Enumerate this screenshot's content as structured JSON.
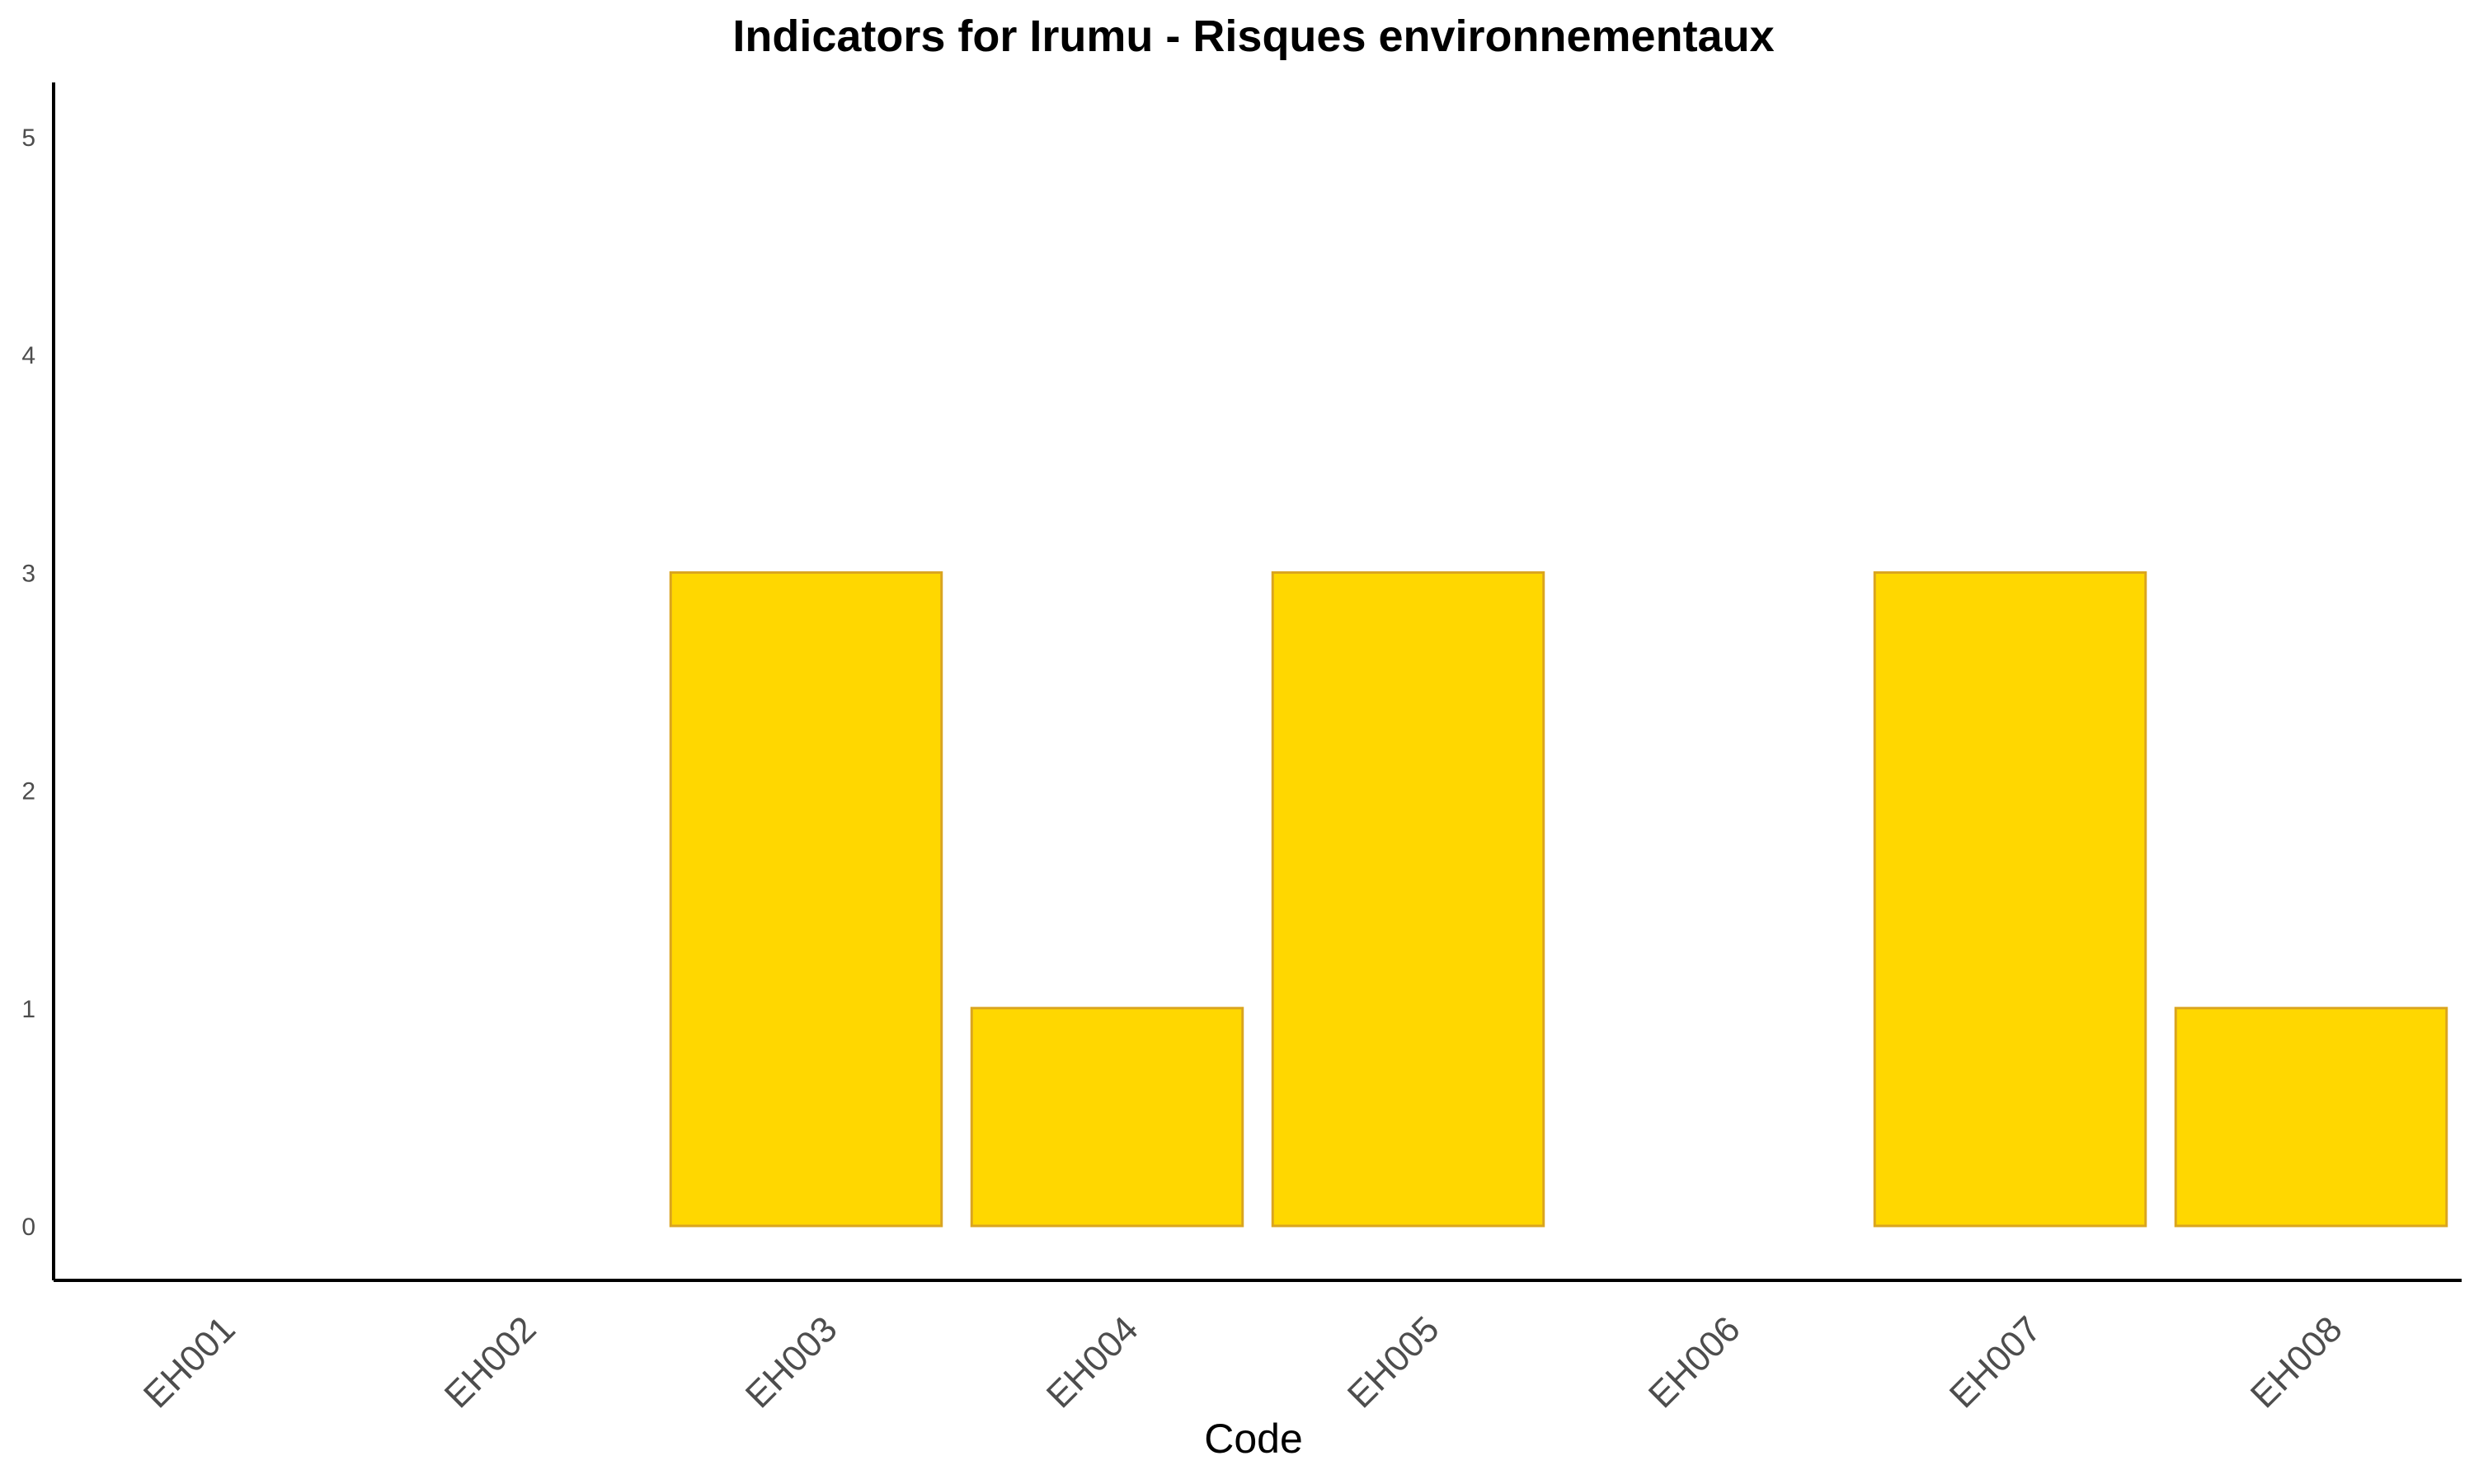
{
  "chart_data": {
    "type": "bar",
    "title": "Indicators for Irumu - Risques environnementaux",
    "xlabel": "Code",
    "ylabel": "",
    "categories": [
      "EH001",
      "EH002",
      "EH003",
      "EH004",
      "EH005",
      "EH006",
      "EH007",
      "EH008"
    ],
    "values": [
      0,
      0,
      3,
      1,
      3,
      0,
      3,
      1
    ],
    "ylim": [
      -0.25,
      5.25
    ],
    "yticks": [
      "0",
      "1",
      "2",
      "3",
      "4",
      "5"
    ],
    "grid": false,
    "legend": "none",
    "colors": {
      "bar_fill": "#FFD700",
      "bar_stroke": "#DAA520",
      "axis": "#000000",
      "tick_text": "#4d4d4d"
    }
  }
}
